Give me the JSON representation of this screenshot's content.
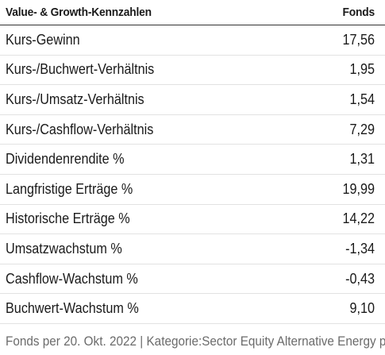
{
  "table": {
    "header": {
      "label": "Value- & Growth-Kennzahlen",
      "column": "Fonds"
    },
    "rows": [
      {
        "label": "Kurs-Gewinn",
        "value": "17,56"
      },
      {
        "label": "Kurs-/Buchwert-Verhältnis",
        "value": "1,95"
      },
      {
        "label": "Kurs-/Umsatz-Verhältnis",
        "value": "1,54"
      },
      {
        "label": "Kurs-/Cashflow-Verhältnis",
        "value": "7,29"
      },
      {
        "label": "Dividendenrendite %",
        "value": "1,31"
      },
      {
        "label": "Langfristige Erträge %",
        "value": "19,99"
      },
      {
        "label": "Historische Erträge %",
        "value": "14,22"
      },
      {
        "label": "Umsatzwachstum %",
        "value": "-1,34"
      },
      {
        "label": "Cashflow-Wachstum %",
        "value": "-0,43"
      },
      {
        "label": "Buchwert-Wachstum %",
        "value": "9,10"
      }
    ]
  },
  "footer": {
    "text": "Fonds per 20. Okt. 2022 | Kategorie:Sector Equity Alternative Energy per"
  }
}
